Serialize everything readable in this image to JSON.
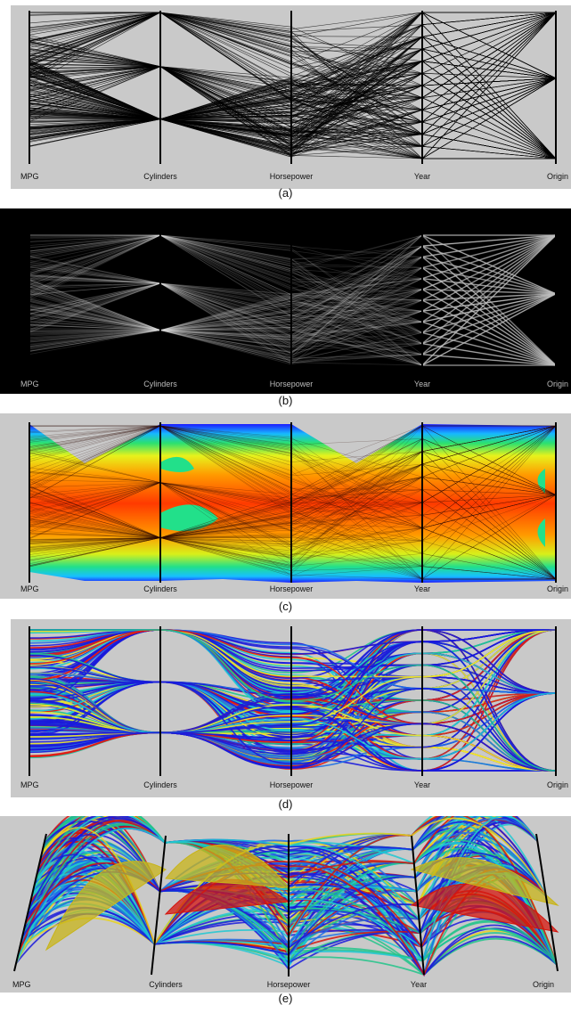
{
  "chart_data": [
    {
      "type": "parallel-coordinates",
      "style": "black polylines on gray background",
      "axes": [
        "MPG",
        "Cylinders",
        "Horsepower",
        "Year",
        "Origin"
      ],
      "caption": "(a)",
      "colors": {
        "background": "#c9c9c9",
        "lines": "#000000",
        "axes": "#000000"
      }
    },
    {
      "type": "parallel-coordinates",
      "style": "density (grayscale) on black background",
      "axes": [
        "MPG",
        "Cylinders",
        "Horsepower",
        "Year",
        "Origin"
      ],
      "caption": "(b)",
      "colors": {
        "background": "#000000",
        "lines": "#bdbdbd",
        "axes": "#000000"
      }
    },
    {
      "type": "parallel-coordinates",
      "style": "density heatmap (blue to red)",
      "axes": [
        "MPG",
        "Cylinders",
        "Horsepower",
        "Year",
        "Origin"
      ],
      "caption": "(c)",
      "colors": {
        "background": "#c9c9c9",
        "low": "#1b1bff",
        "mid": "#21e06e",
        "high": "#ff2a00",
        "axes": "#000000"
      }
    },
    {
      "type": "parallel-coordinates",
      "style": "curved polylines colored by density",
      "axes": [
        "MPG",
        "Cylinders",
        "Horsepower",
        "Year",
        "Origin"
      ],
      "caption": "(d)",
      "colors": {
        "background": "#c9c9c9",
        "low": "#1a1adc",
        "mid": "#1fc8d2",
        "high": "#f2e62a",
        "peak": "#e21c12"
      }
    },
    {
      "type": "parallel-coordinates",
      "style": "3D bundled arcs colored by density",
      "axes": [
        "MPG",
        "Cylinders",
        "Horsepower",
        "Year",
        "Origin"
      ],
      "caption": "(e)",
      "colors": {
        "background": "#c9c9c9",
        "low": "#1a1adc",
        "mid": "#1fc8d2",
        "high": "#e8d21c",
        "peak": "#d4150d"
      }
    }
  ]
}
